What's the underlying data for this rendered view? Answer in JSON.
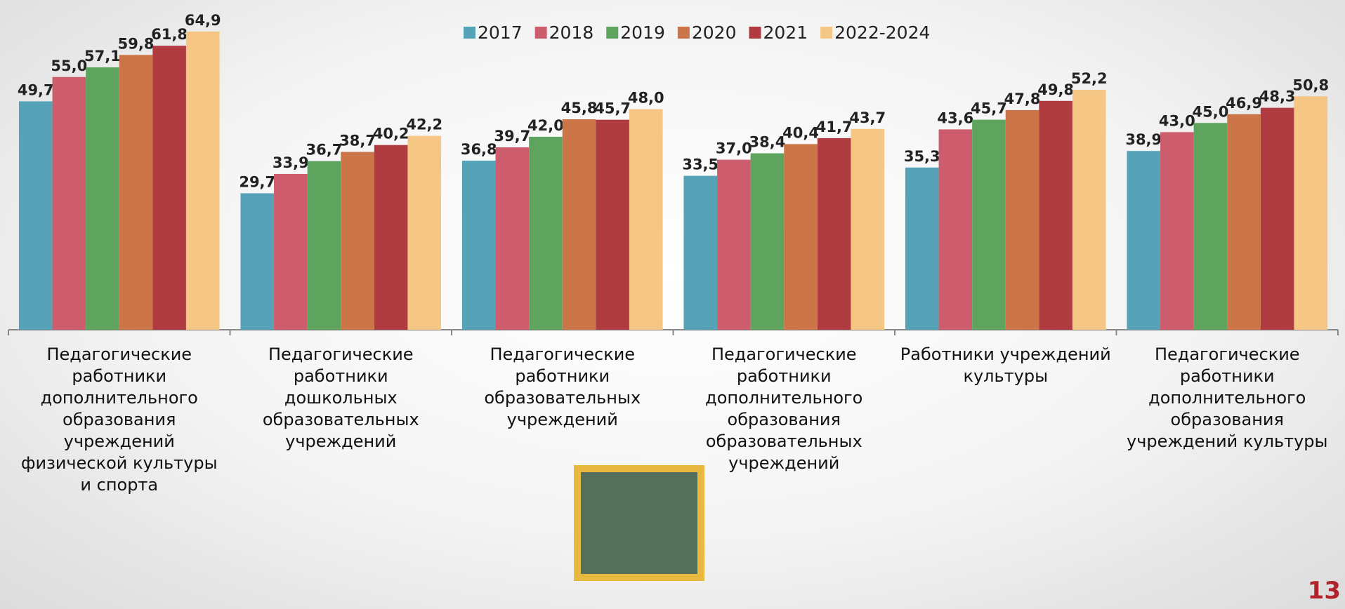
{
  "chart_data": {
    "type": "bar",
    "categories": [
      "Педагогические работники дополнительного образования учреждений физической культуры и спорта",
      "Педагогические работники дошкольных образовательных учреждений",
      "Педагогические работники образовательных учреждений",
      "Педагогические работники дополнительного образования образовательных учреждений",
      "Работники учреждений культуры",
      "Педагогические работники дополнительного образования учреждений культуры"
    ],
    "series": [
      {
        "name": "2017",
        "color": "#56a3b8",
        "values": [
          49.7,
          29.7,
          36.8,
          33.5,
          35.3,
          38.9
        ],
        "value_labels": [
          "49,7",
          "29,7",
          "36,8",
          "33,5",
          "35,3",
          "38,9"
        ]
      },
      {
        "name": "2018",
        "color": "#cd5c6c",
        "values": [
          55.0,
          33.9,
          39.7,
          37.0,
          43.6,
          43.0
        ],
        "value_labels": [
          "55,0",
          "33,9",
          "39,7",
          "37,0",
          "43,6",
          "43,0"
        ]
      },
      {
        "name": "2019",
        "color": "#5ea35e",
        "values": [
          57.1,
          36.7,
          42.0,
          38.4,
          45.7,
          45.0
        ],
        "value_labels": [
          "57,1",
          "36,7",
          "42,0",
          "38,4",
          "45,7",
          "45,0"
        ]
      },
      {
        "name": "2020",
        "color": "#cc7548",
        "values": [
          59.8,
          38.7,
          45.8,
          40.4,
          47.8,
          46.9
        ],
        "value_labels": [
          "59,8",
          "38,7",
          "45,8",
          "40,4",
          "47,8",
          "46,9"
        ]
      },
      {
        "name": "2021",
        "color": "#b03c42",
        "values": [
          61.8,
          40.2,
          45.7,
          41.7,
          49.8,
          48.3
        ],
        "value_labels": [
          "61,8",
          "40,2",
          "45,7",
          "41,7",
          "49,8",
          "48,3"
        ]
      },
      {
        "name": "2022-2024",
        "color": "#f5c684",
        "values": [
          64.9,
          42.2,
          48.0,
          43.7,
          52.2,
          50.8
        ],
        "value_labels": [
          "64,9",
          "42,2",
          "48,0",
          "43,7",
          "52,2",
          "50,8"
        ]
      }
    ],
    "legend": "top"
  },
  "page_number": "13"
}
